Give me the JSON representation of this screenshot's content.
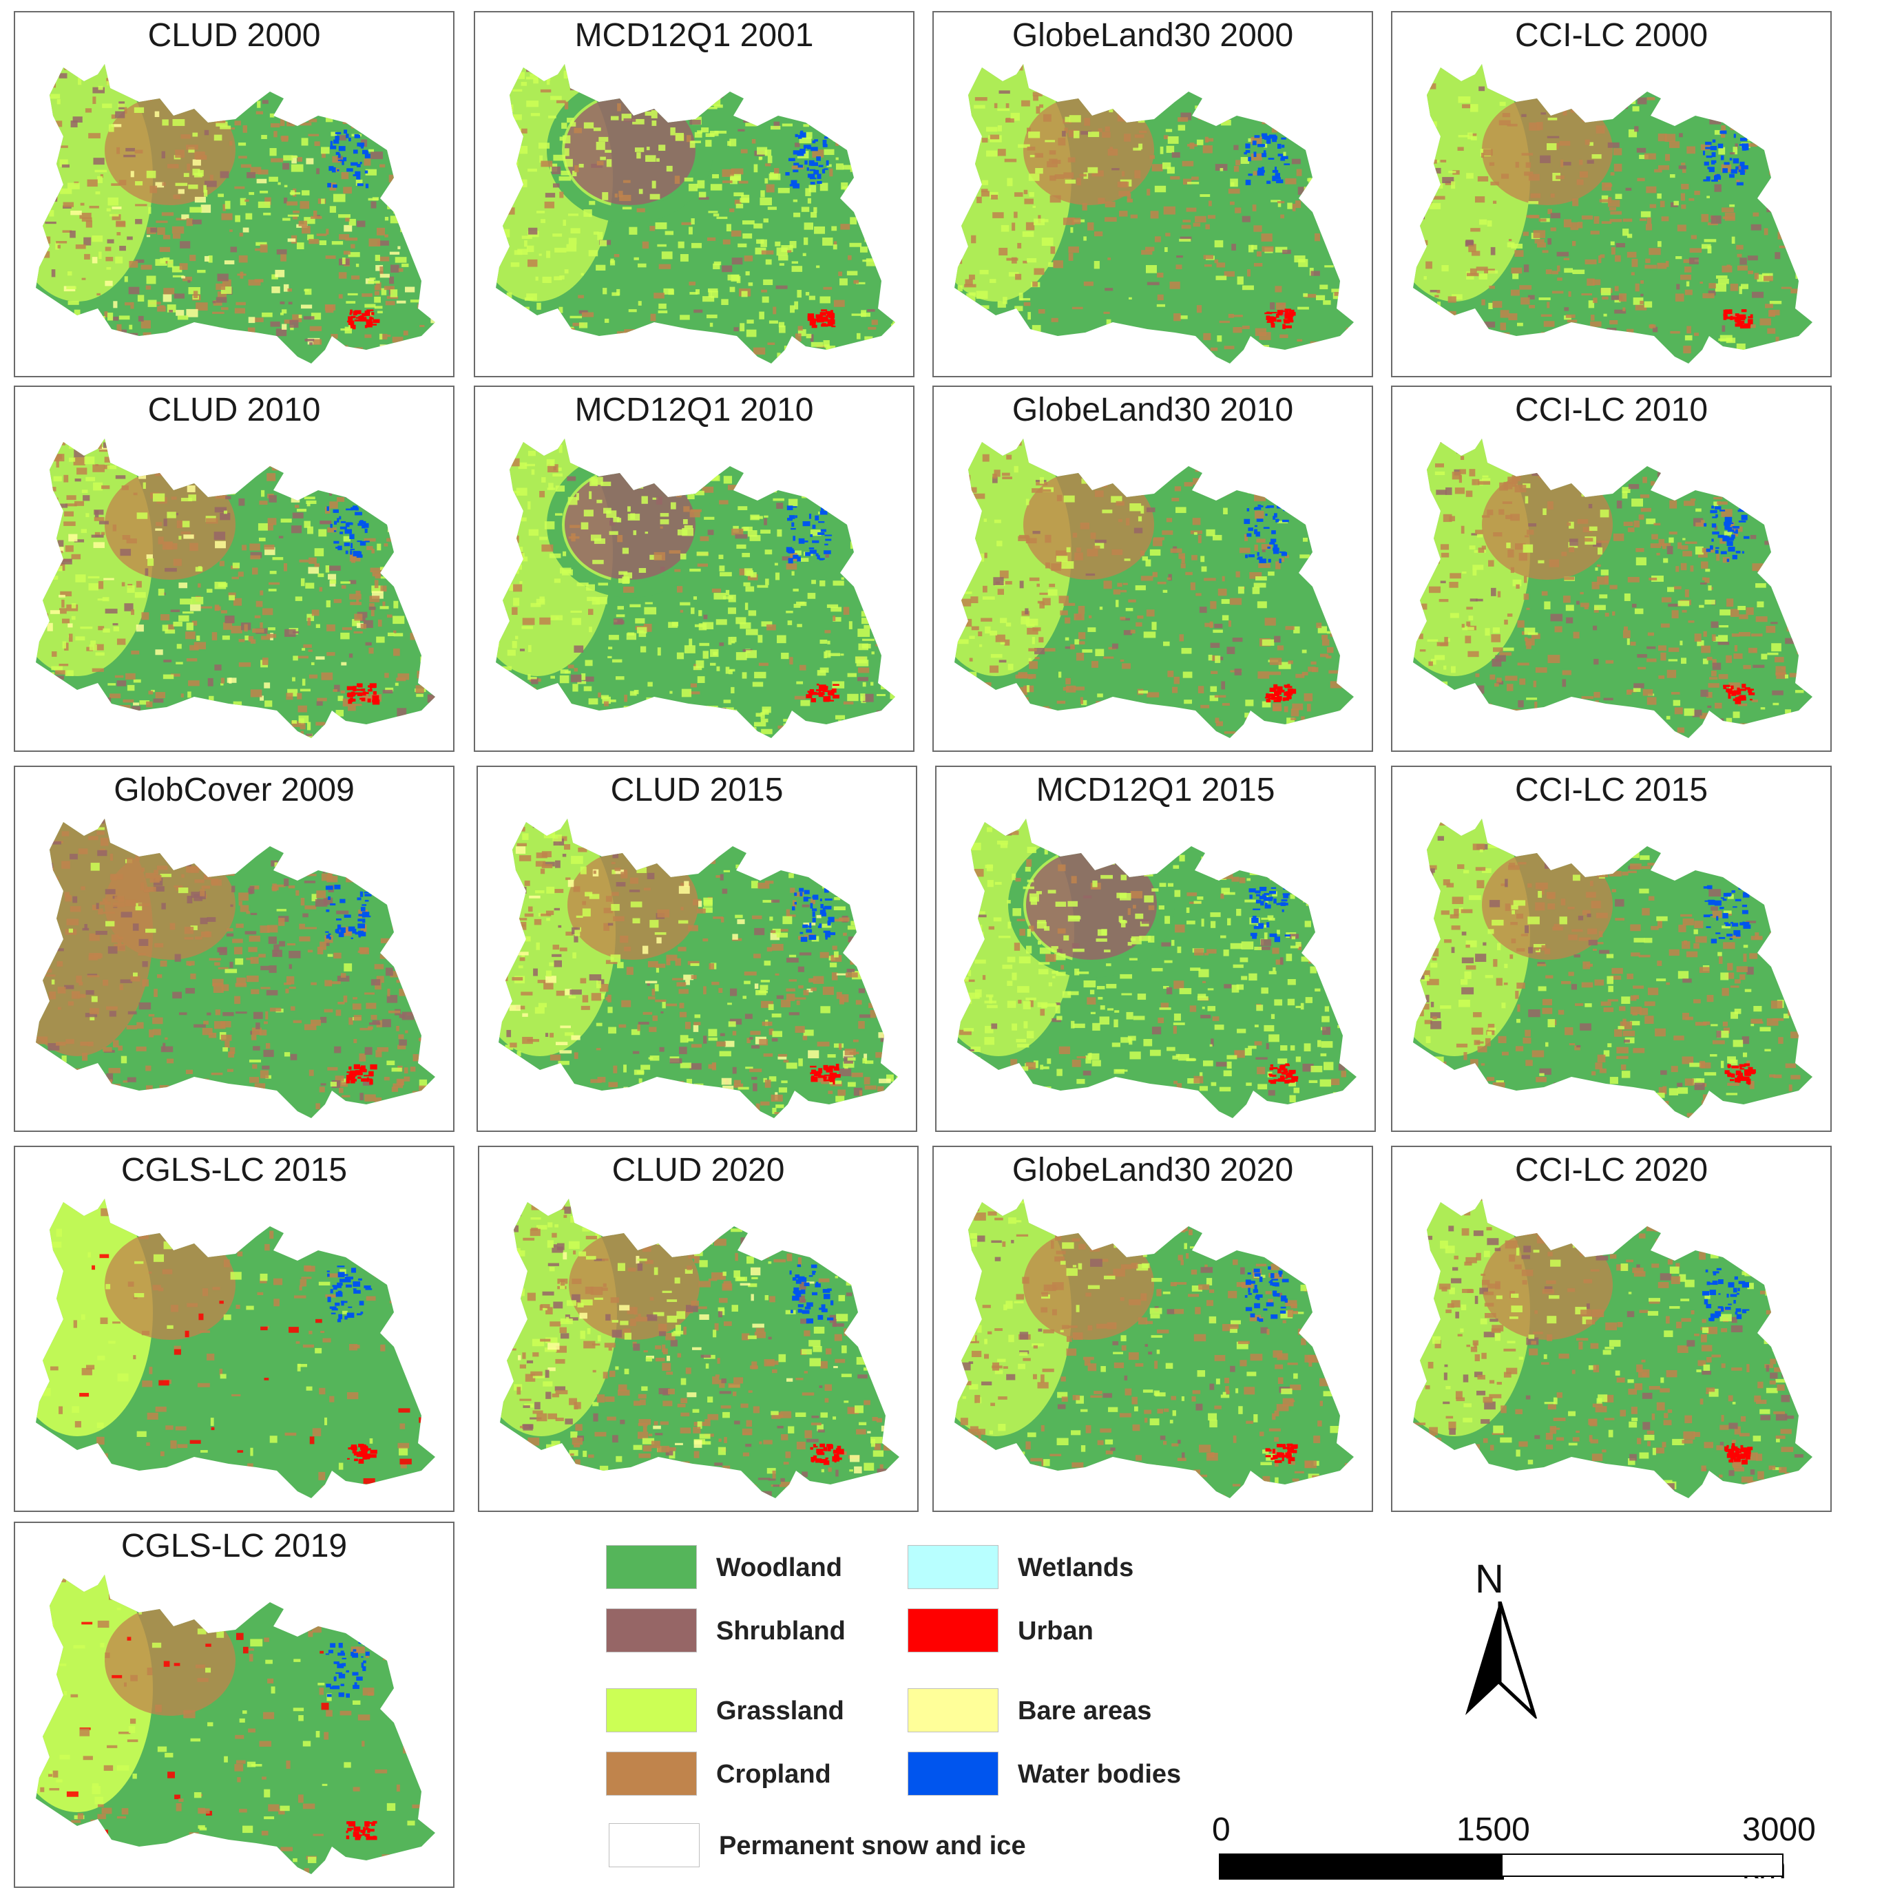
{
  "panels": [
    {
      "title": "CLUD 2000",
      "style": "clud"
    },
    {
      "title": "MCD12Q1 2001",
      "style": "mcd"
    },
    {
      "title": "GlobeLand30 2000",
      "style": "globe"
    },
    {
      "title": "CCI-LC 2000",
      "style": "cci"
    },
    {
      "title": "CLUD 2010",
      "style": "clud"
    },
    {
      "title": "MCD12Q1 2010",
      "style": "mcd"
    },
    {
      "title": "GlobeLand30 2010",
      "style": "globe"
    },
    {
      "title": "CCI-LC 2010",
      "style": "cci"
    },
    {
      "title": "GlobCover 2009",
      "style": "globcover"
    },
    {
      "title": "CLUD 2015",
      "style": "clud"
    },
    {
      "title": "MCD12Q1 2015",
      "style": "mcd"
    },
    {
      "title": "CCI-LC 2015",
      "style": "cci"
    },
    {
      "title": "CGLS-LC 2015",
      "style": "cgls"
    },
    {
      "title": "CLUD 2020",
      "style": "clud"
    },
    {
      "title": "GlobeLand30 2020",
      "style": "globe"
    },
    {
      "title": "CCI-LC 2020",
      "style": "cci"
    },
    {
      "title": "CGLS-LC 2019",
      "style": "cgls"
    }
  ],
  "legend": [
    {
      "label": "Woodland",
      "color": "#55b55a"
    },
    {
      "label": "Shrubland",
      "color": "#966666"
    },
    {
      "label": "Grassland",
      "color": "#ccff55"
    },
    {
      "label": "Cropland",
      "color": "#c0844c"
    },
    {
      "label": "Wetlands",
      "color": "#b8ffff"
    },
    {
      "label": "Urban",
      "color": "#ff0000"
    },
    {
      "label": "Bare areas",
      "color": "#ffff99"
    },
    {
      "label": "Water bodies",
      "color": "#0055ee"
    },
    {
      "label": "Permanent snow and ice",
      "color": "#ffffff"
    }
  ],
  "north_arrow": {
    "label": "N"
  },
  "scale_bar": {
    "labels": [
      "0",
      "1500",
      "3000 km"
    ]
  }
}
